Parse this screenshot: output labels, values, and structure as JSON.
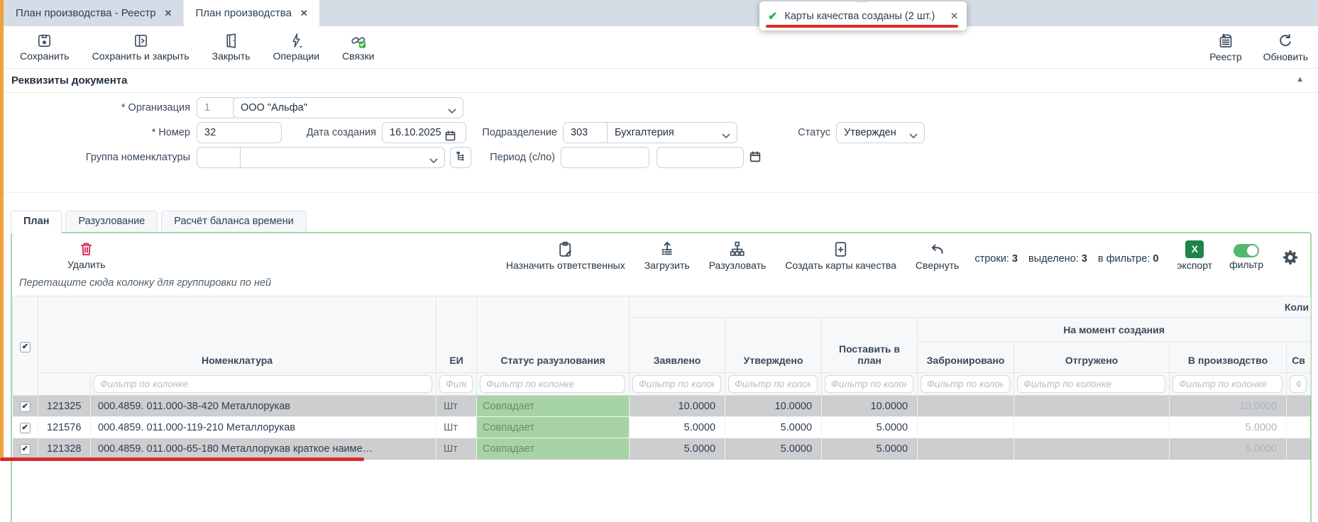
{
  "icons": {
    "check": "✔",
    "close": "✕",
    "collapse_caret": "▲"
  },
  "colors": {
    "toolbar_icon": "#3d4e5f",
    "danger": "#d6204a",
    "success": "#2fae49",
    "toggle_on": "#53b96a",
    "excel_green": "#1e8449",
    "status_bg": "#a6d4a4",
    "annotation_red": "#d92b2b",
    "orange_bar": "#efa13b",
    "panel_border": "#a8d7a9"
  },
  "window": {
    "tabs": [
      {
        "label": "План производства - Реестр",
        "active": false
      },
      {
        "label": "План производства",
        "active": true
      }
    ]
  },
  "toast": {
    "message": "Карты качества созданы (2 шт.)"
  },
  "toolbar": {
    "save": "Сохранить",
    "save_close": "Сохранить и закрыть",
    "close": "Закрыть",
    "operations": "Операции",
    "links": "Связки",
    "registry": "Реестр",
    "refresh": "Обновить"
  },
  "document": {
    "title": "Реквизиты документа",
    "org_label": "* Организация",
    "org_code": "1",
    "org_name": "ООО \"Альфа\"",
    "number_label": "* Номер",
    "number": "32",
    "date_label": "Дата создания",
    "date": "16.10.2025",
    "division_label": "Подразделение",
    "division_code": "303",
    "division_name": "Бухгалтерия",
    "status_label": "Статус",
    "status": "Утвержден",
    "group_label": "Группа номенклатуры",
    "group_code": "",
    "group_name": "",
    "period_label": "Период (с/по)",
    "period_from": "",
    "period_to": ""
  },
  "inner_tabs": {
    "plan": "План",
    "explode": "Разузлование",
    "balance": "Расчёт баланса времени"
  },
  "grid_toolbar": {
    "delete": "Удалить",
    "assign": "Назначить ответственных",
    "load": "Загрузить",
    "explode": "Разузловать",
    "create_cards": "Создать карты качества",
    "collapse": "Свернуть",
    "rows_label": "строки:",
    "rows_value": "3",
    "selected_label": "выделено:",
    "selected_value": "3",
    "filtered_label": "в фильтре:",
    "filtered_value": "0",
    "export": "экспорт",
    "export_glyph": "X",
    "filter": "фильтр"
  },
  "grid": {
    "group_hint": "Перетащите сюда колонку для группировки по ней",
    "quantity_group": "Коли",
    "creation_group": "На момент создания",
    "columns": {
      "nomenclature": "Номенклатура",
      "unit": "ЕИ",
      "status": "Статус разузлования",
      "declared": "Заявлено",
      "approved": "Утверждено",
      "to_plan": "Поставить в план",
      "reserved": "Забронировано",
      "shipped": "Отгружено",
      "in_production": "В производство",
      "extra": "Св"
    },
    "filter_placeholder": "Фильтр по колонке",
    "rows": [
      {
        "checked": true,
        "selected": true,
        "id": "121325",
        "name": "000.4859. 011.000-38-420 Металлорукав",
        "unit": "Шт",
        "status": "Совпадает",
        "declared": "10.0000",
        "approved": "10.0000",
        "to_plan": "10.0000",
        "reserved": "",
        "shipped": "",
        "in_production": "10.0000"
      },
      {
        "checked": true,
        "selected": false,
        "id": "121576",
        "name": "000.4859. 011.000-119-210 Металлорукав",
        "unit": "Шт",
        "status": "Совпадает",
        "declared": "5.0000",
        "approved": "5.0000",
        "to_plan": "5.0000",
        "reserved": "",
        "shipped": "",
        "in_production": "5.0000"
      },
      {
        "checked": true,
        "selected": true,
        "id": "121328",
        "name": "000.4859. 011.000-65-180 Металлорукав краткое наиме…",
        "unit": "Шт",
        "status": "Совпадает",
        "declared": "5.0000",
        "approved": "5.0000",
        "to_plan": "5.0000",
        "reserved": "",
        "shipped": "",
        "in_production": "5.0000"
      }
    ]
  }
}
